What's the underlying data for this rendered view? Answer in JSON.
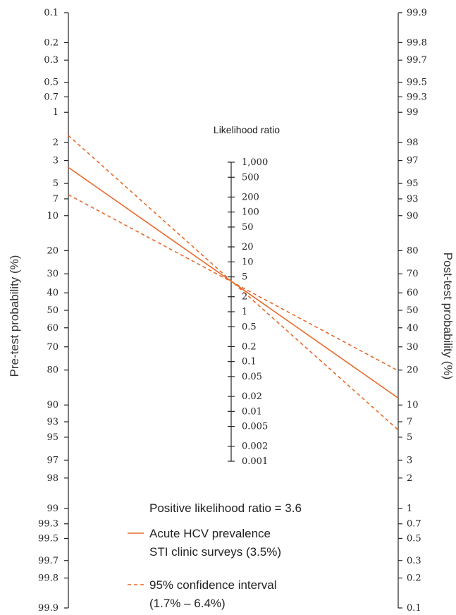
{
  "chart_data": {
    "type": "nomogram",
    "title": "",
    "left_axis": {
      "label": "Pre-test probability (%)",
      "ticks": [
        "0.1",
        "0.2",
        "0.3",
        "0.5",
        "0.7",
        "1",
        "2",
        "3",
        "5",
        "7",
        "10",
        "20",
        "30",
        "40",
        "50",
        "60",
        "70",
        "80",
        "90",
        "93",
        "95",
        "97",
        "98",
        "99",
        "99.3",
        "99.5",
        "99.7",
        "99.8",
        "99.9"
      ]
    },
    "middle_axis": {
      "label": "Likelihood ratio",
      "ticks": [
        "1,000",
        "500",
        "200",
        "100",
        "50",
        "20",
        "10",
        "5",
        "2",
        "1",
        "0.5",
        "0.2",
        "0.1",
        "0.05",
        "0.02",
        "0.01",
        "0.005",
        "0.002",
        "0.001"
      ]
    },
    "right_axis": {
      "label": "Post-test probability (%)",
      "ticks": [
        "99.9",
        "99.8",
        "99.7",
        "99.5",
        "99.3",
        "99",
        "98",
        "97",
        "95",
        "93",
        "90",
        "80",
        "70",
        "60",
        "50",
        "40",
        "30",
        "20",
        "10",
        "7",
        "5",
        "3",
        "2",
        "1",
        "0.7",
        "0.5",
        "0.3",
        "0.2",
        "0.1"
      ]
    },
    "annotation": "Positive likelihood ratio = 3.6",
    "series": [
      {
        "name": "Acute HCV prevalence STI clinic surveys (3.5%)",
        "style": "solid",
        "color": "#e8692a",
        "pretest": 3.5,
        "likelihood_ratio": 3.6
      },
      {
        "name": "95% confidence interval (1.7% – 6.4%)",
        "style": "dashed",
        "color": "#e8692a",
        "pretest": 1.7,
        "likelihood_ratio": 3.6
      },
      {
        "name": "95% confidence interval (1.7% – 6.4%)",
        "style": "dashed",
        "color": "#e8692a",
        "pretest": 6.4,
        "likelihood_ratio": 3.6
      }
    ],
    "legend": [
      {
        "style": "solid",
        "lines": [
          "Acute HCV prevalence",
          "STI clinic surveys (3.5%)"
        ]
      },
      {
        "style": "dashed",
        "lines": [
          "95% confidence interval",
          "(1.7% – 6.4%)"
        ]
      }
    ]
  }
}
